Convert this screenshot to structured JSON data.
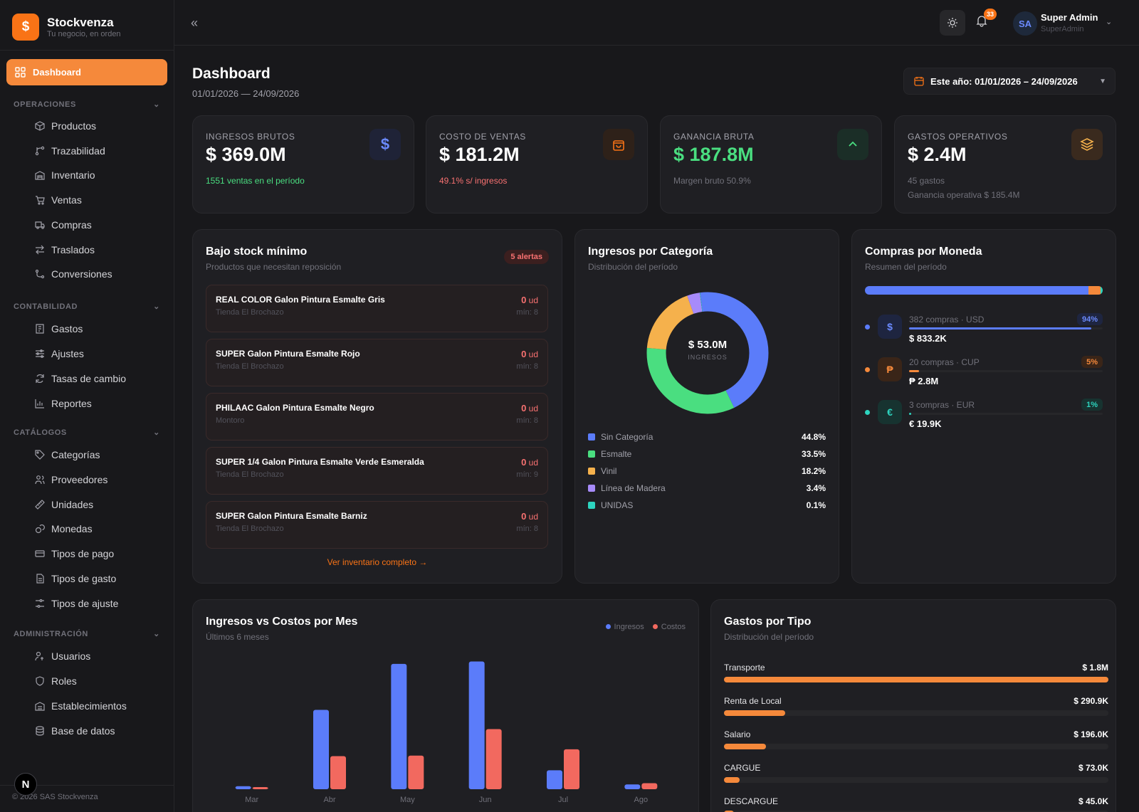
{
  "brand": {
    "name": "Stockvenza",
    "tagline": "Tu negocio, en orden"
  },
  "sidebar": {
    "active": {
      "label": "Dashboard",
      "icon": "grid-icon"
    },
    "sections": [
      {
        "title": "OPERACIONES",
        "items": [
          {
            "label": "Productos",
            "icon": "box-icon"
          },
          {
            "label": "Trazabilidad",
            "icon": "branch-icon"
          },
          {
            "label": "Inventario",
            "icon": "warehouse-icon"
          },
          {
            "label": "Ventas",
            "icon": "cart-icon"
          },
          {
            "label": "Compras",
            "icon": "truck-icon"
          },
          {
            "label": "Traslados",
            "icon": "arrows-icon"
          },
          {
            "label": "Conversiones",
            "icon": "route-icon"
          }
        ]
      },
      {
        "title": "CONTABILIDAD",
        "items": [
          {
            "label": "Gastos",
            "icon": "receipt-icon"
          },
          {
            "label": "Ajustes",
            "icon": "sliders-icon"
          },
          {
            "label": "Tasas de cambio",
            "icon": "refresh-icon"
          },
          {
            "label": "Reportes",
            "icon": "bar-chart-icon"
          }
        ]
      },
      {
        "title": "CATÁLOGOS",
        "items": [
          {
            "label": "Categorías",
            "icon": "tag-icon"
          },
          {
            "label": "Proveedores",
            "icon": "users-icon"
          },
          {
            "label": "Unidades",
            "icon": "ruler-icon"
          },
          {
            "label": "Monedas",
            "icon": "coins-icon"
          },
          {
            "label": "Tipos de pago",
            "icon": "card-icon"
          },
          {
            "label": "Tipos de gasto",
            "icon": "file-icon"
          },
          {
            "label": "Tipos de ajuste",
            "icon": "adjust-icon"
          }
        ]
      },
      {
        "title": "ADMINISTRACIÓN",
        "items": [
          {
            "label": "Usuarios",
            "icon": "user-key-icon"
          },
          {
            "label": "Roles",
            "icon": "shield-icon"
          },
          {
            "label": "Establecimientos",
            "icon": "building-icon"
          },
          {
            "label": "Base de datos",
            "icon": "database-icon"
          }
        ]
      }
    ],
    "copyright": "© 2026 SAS Stockvenza",
    "n_badge": "N"
  },
  "topbar": {
    "notifications": "33",
    "avatar": "SA",
    "user_name": "Super Admin",
    "user_role": "SuperAdmin"
  },
  "header": {
    "title": "Dashboard",
    "date_range": "01/01/2026 — 24/09/2026",
    "range_button": "Este año: 01/01/2026 – 24/09/2026"
  },
  "kpis": [
    {
      "label": "INGRESOS BRUTOS",
      "value": "$ 369.0M",
      "note": "1551 ventas en el período",
      "note2": "",
      "icon": "dollar-icon",
      "value_color": "#ffffff",
      "note_color": "#4ade80"
    },
    {
      "label": "COSTO DE VENTAS",
      "value": "$ 181.2M",
      "note": "49.1% s/ ingresos",
      "note2": "",
      "icon": "bag-icon",
      "value_color": "#ffffff",
      "note_color": "#f87171"
    },
    {
      "label": "GANANCIA BRUTA",
      "value": "$ 187.8M",
      "note": "Margen bruto 50.9%",
      "note2": "",
      "icon": "chevron-up-icon",
      "value_color": "#4ade80",
      "note_color": "#71717a"
    },
    {
      "label": "GASTOS OPERATIVOS",
      "value": "$ 2.4M",
      "note": "45 gastos",
      "note2": "Ganancia operativa $ 185.4M",
      "icon": "layers-icon",
      "value_color": "#ffffff",
      "note_color": "#71717a"
    }
  ],
  "low_stock": {
    "title": "Bajo stock mínimo",
    "subtitle": "Productos que necesitan reposición",
    "badge": "5 alertas",
    "unit": "ud",
    "items": [
      {
        "name": "REAL COLOR Galon Pintura Esmalte Gris",
        "store": "Tienda El Brochazo",
        "qty": "0",
        "min": "mín: 8"
      },
      {
        "name": "SUPER Galon Pintura Esmalte Rojo",
        "store": "Tienda El Brochazo",
        "qty": "0",
        "min": "mín: 8"
      },
      {
        "name": "PHILAAC Galon Pintura Esmalte Negro",
        "store": "Montoro",
        "qty": "0",
        "min": "mín: 8"
      },
      {
        "name": "SUPER 1/4 Galon Pintura Esmalte Verde Esmeralda",
        "store": "Tienda El Brochazo",
        "qty": "0",
        "min": "mín: 9"
      },
      {
        "name": "SUPER Galon Pintura Esmalte Barniz",
        "store": "Tienda El Brochazo",
        "qty": "0",
        "min": "mín: 8"
      }
    ],
    "link": "Ver inventario completo →"
  },
  "categories": {
    "title": "Ingresos por Categoría",
    "subtitle": "Distribución del período",
    "center_value": "$ 53.0M",
    "center_label": "INGRESOS",
    "items": [
      {
        "label": "Sin Categoría",
        "pct": "44.8%",
        "value": 44.8,
        "color": "#5b7cfa"
      },
      {
        "label": "Esmalte",
        "pct": "33.5%",
        "value": 33.5,
        "color": "#4ade80"
      },
      {
        "label": "Vinil",
        "pct": "18.2%",
        "value": 18.2,
        "color": "#f5b14c"
      },
      {
        "label": "Línea de Madera",
        "pct": "3.4%",
        "value": 3.4,
        "color": "#a78bfa"
      },
      {
        "label": "UNIDAS",
        "pct": "0.1%",
        "value": 0.1,
        "color": "#2dd4bf"
      }
    ]
  },
  "currency": {
    "title": "Compras por Moneda",
    "subtitle": "Resumen del período",
    "items": [
      {
        "label": "382 compras · USD",
        "value": "$ 833.2K",
        "pct": "94%",
        "share": 94,
        "symbol": "$",
        "color": "#5b7cfa",
        "bg": "#1e2540"
      },
      {
        "label": "20 compras · CUP",
        "value": "₱ 2.8M",
        "pct": "5%",
        "share": 5,
        "symbol": "₱",
        "color": "#f5893b",
        "bg": "#3a2518"
      },
      {
        "label": "3 compras · EUR",
        "value": "€ 19.9K",
        "pct": "1%",
        "share": 1,
        "symbol": "€",
        "color": "#2dd4bf",
        "bg": "#173330"
      }
    ]
  },
  "monthly": {
    "title": "Ingresos vs Costos por Mes",
    "subtitle": "Últimos 6 meses",
    "legend": {
      "ingresos": "Ingresos",
      "costos": "Costos"
    }
  },
  "chart_data": {
    "type": "bar",
    "categories": [
      "Mar",
      "Abr",
      "May",
      "Jun",
      "Jul",
      "Ago"
    ],
    "series": [
      {
        "name": "Ingresos",
        "color": "#5b7cfa",
        "values": [
          1.0,
          26.4,
          41.7,
          42.5,
          6.3,
          1.6
        ]
      },
      {
        "name": "Costos",
        "color": "#f2695f",
        "values": [
          0.5,
          11.0,
          11.2,
          20.0,
          13.3,
          2.0
        ]
      }
    ],
    "ylim": [
      0,
      45
    ],
    "grid": false,
    "legend_position": "top-right"
  },
  "expenses": {
    "title": "Gastos por Tipo",
    "subtitle": "Distribución del período",
    "items": [
      {
        "label": "Transporte",
        "value": "$ 1.8M",
        "fraction": 1.0
      },
      {
        "label": "Renta de Local",
        "value": "$ 290.9K",
        "fraction": 0.16
      },
      {
        "label": "Salario",
        "value": "$ 196.0K",
        "fraction": 0.11
      },
      {
        "label": "CARGUE",
        "value": "$ 73.0K",
        "fraction": 0.04
      },
      {
        "label": "DESCARGUE",
        "value": "$ 45.0K",
        "fraction": 0.025
      }
    ]
  }
}
